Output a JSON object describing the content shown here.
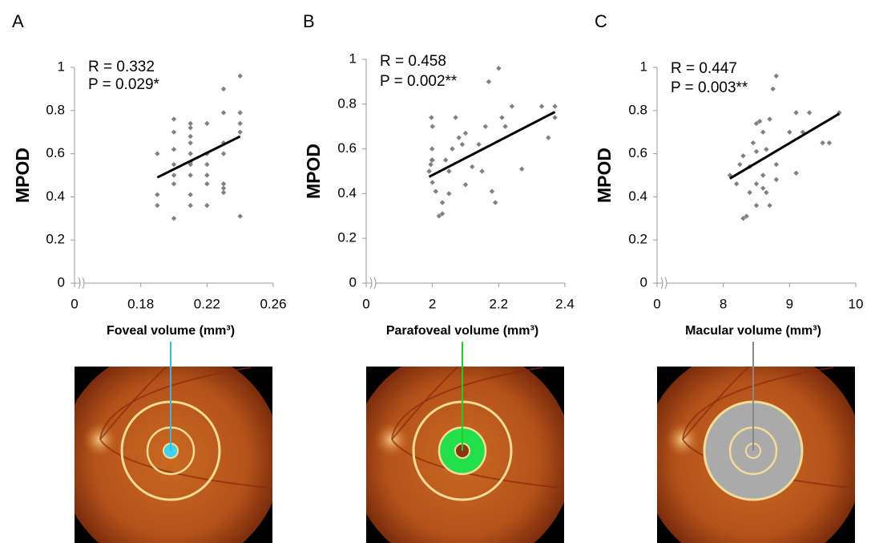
{
  "chart_data": [
    {
      "type": "scatter",
      "panel_label": "A",
      "annotations": [
        "R = 0.332",
        "P = 0.029*"
      ],
      "x_label": "Foveal volume (mm³)",
      "y_label": "MPOD",
      "color": "#808080",
      "x": [
        0.19,
        0.19,
        0.19,
        0.2,
        0.2,
        0.2,
        0.2,
        0.2,
        0.2,
        0.2,
        0.21,
        0.21,
        0.21,
        0.21,
        0.21,
        0.21,
        0.21,
        0.21,
        0.21,
        0.21,
        0.22,
        0.22,
        0.22,
        0.22,
        0.22,
        0.22,
        0.23,
        0.23,
        0.23,
        0.23,
        0.23,
        0.23,
        0.23,
        0.24,
        0.24,
        0.24,
        0.24,
        0.24
      ],
      "values": [
        0.6,
        0.41,
        0.36,
        0.76,
        0.7,
        0.62,
        0.55,
        0.5,
        0.46,
        0.3,
        0.74,
        0.72,
        0.68,
        0.65,
        0.6,
        0.56,
        0.55,
        0.5,
        0.41,
        0.36,
        0.74,
        0.6,
        0.55,
        0.5,
        0.46,
        0.36,
        0.9,
        0.79,
        0.65,
        0.6,
        0.46,
        0.44,
        0.42,
        0.96,
        0.79,
        0.74,
        0.7,
        0.31
      ],
      "trendline": {
        "x": [
          0.19,
          0.24
        ],
        "values": [
          0.49,
          0.68
        ],
        "color": "#000000"
      },
      "xlim": [
        0,
        0.26
      ],
      "xticks": [
        0,
        0.18,
        0.22,
        0.26
      ],
      "ylim": [
        0,
        1
      ],
      "yticks": [
        0,
        0.2,
        0.4,
        0.6,
        0.8,
        1
      ],
      "x_break": true
    },
    {
      "type": "scatter",
      "panel_label": "B",
      "annotations": [
        "R = 0.458",
        "P = 0.002**"
      ],
      "x_label": "Parafoveal volume  (mm³)",
      "y_label": "MPOD",
      "color": "#808080",
      "x": [
        1.9,
        1.95,
        1.97,
        1.98,
        1.99,
        2.0,
        2.0,
        2.0,
        2.01,
        2.02,
        2.03,
        2.03,
        2.04,
        2.05,
        2.06,
        2.07,
        2.08,
        2.09,
        2.1,
        2.1,
        2.05,
        2.12,
        2.15,
        2.16,
        2.17,
        2.18,
        2.19,
        2.2,
        2.21,
        2.22,
        2.24,
        2.27,
        2.33,
        2.35,
        2.37,
        2.37,
        2.14
      ],
      "values": [
        0.5,
        0.53,
        0.74,
        0.55,
        0.6,
        0.55,
        0.7,
        0.45,
        0.41,
        0.3,
        0.31,
        0.36,
        0.55,
        0.5,
        0.6,
        0.74,
        0.65,
        0.62,
        0.67,
        0.44,
        0.4,
        0.52,
        0.5,
        0.7,
        0.9,
        0.41,
        0.36,
        0.96,
        0.74,
        0.7,
        0.79,
        0.51,
        0.79,
        0.65,
        0.79,
        0.74,
        0.62
      ],
      "trendline": {
        "x": [
          1.9,
          2.37
        ],
        "values": [
          0.475,
          0.765
        ],
        "color": "#000000"
      },
      "xlim": [
        0,
        2.4
      ],
      "xticks": [
        0,
        2,
        2.2,
        2.4
      ],
      "ylim": [
        0,
        1
      ],
      "yticks": [
        0,
        0.2,
        0.4,
        0.6,
        0.8,
        1
      ],
      "x_break": true
    },
    {
      "type": "scatter",
      "panel_label": "C",
      "annotations": [
        "R = 0.447",
        "P = 0.003**"
      ],
      "x_label": "Macular volume (mm³)",
      "y_label": "MPOD",
      "color": "#808080",
      "x": [
        8.1,
        8.2,
        8.25,
        8.3,
        8.3,
        8.35,
        8.4,
        8.4,
        8.45,
        8.5,
        8.5,
        8.5,
        8.5,
        8.55,
        8.6,
        8.6,
        8.6,
        8.65,
        8.7,
        8.7,
        8.75,
        8.8,
        8.8,
        8.8,
        9.0,
        9.1,
        9.1,
        9.3,
        9.2,
        9.5,
        9.6,
        9.75,
        8.65
      ],
      "values": [
        0.5,
        0.46,
        0.55,
        0.59,
        0.3,
        0.31,
        0.54,
        0.42,
        0.65,
        0.74,
        0.61,
        0.46,
        0.36,
        0.75,
        0.7,
        0.5,
        0.44,
        0.62,
        0.76,
        0.36,
        0.9,
        0.96,
        0.55,
        0.48,
        0.7,
        0.79,
        0.51,
        0.79,
        0.7,
        0.65,
        0.65,
        0.79,
        0.42
      ],
      "trendline": {
        "x": [
          8.1,
          9.75
        ],
        "values": [
          0.485,
          0.785
        ],
        "color": "#000000"
      },
      "xlim": [
        0,
        10
      ],
      "xticks": [
        0,
        8,
        9,
        10
      ],
      "ylim": [
        0,
        1
      ],
      "yticks": [
        0,
        0.2,
        0.4,
        0.6,
        0.8,
        1
      ],
      "x_break": true
    }
  ]
}
